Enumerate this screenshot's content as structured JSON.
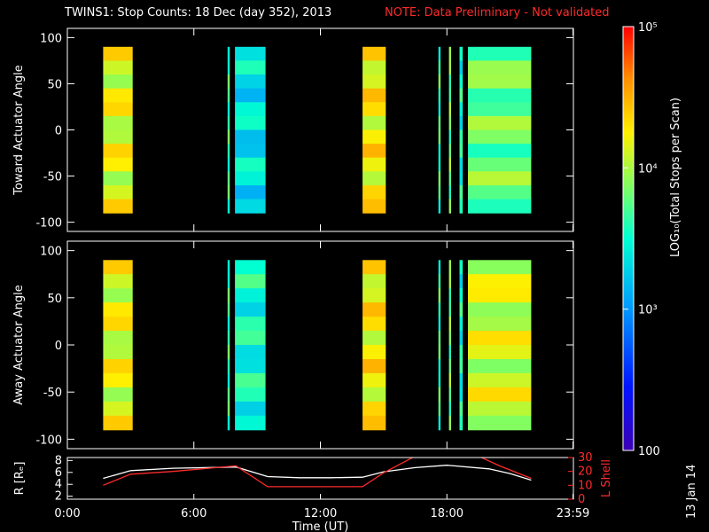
{
  "title": "TWINS1: Stop Counts: 18 Dec (day 352), 2013",
  "note": "NOTE: Data Preliminary - Not validated",
  "date_stamp": "13 Jan 14",
  "colors": {
    "note": "#ff2a2a",
    "r_line": "#ffffff",
    "l_line": "#ff2a2a"
  },
  "colorbar": {
    "label": "LOG₁₀(Total Stops per Scan)",
    "ticks": [
      "10⁵",
      "10⁴",
      "10³",
      "100"
    ]
  },
  "chart_data": [
    {
      "type": "heatmap",
      "name": "toward",
      "ylabel": "Toward Actuator Angle",
      "ylim": [
        -110,
        110
      ],
      "yticks": [
        "100",
        "50",
        "0",
        "-50",
        "-100"
      ],
      "xlim": [
        0,
        24
      ],
      "segments": [
        {
          "start": 1.7,
          "end": 3.1,
          "level": 0.72
        },
        {
          "start": 7.6,
          "end": 7.7,
          "level": 0.55
        },
        {
          "start": 7.95,
          "end": 9.4,
          "level": 0.45
        },
        {
          "start": 14.0,
          "end": 15.1,
          "level": 0.75
        },
        {
          "start": 17.6,
          "end": 17.7,
          "level": 0.55
        },
        {
          "start": 18.1,
          "end": 18.2,
          "level": 0.6
        },
        {
          "start": 18.6,
          "end": 18.75,
          "level": 0.5
        },
        {
          "start": 19.0,
          "end": 22.0,
          "level": 0.6
        }
      ]
    },
    {
      "type": "heatmap",
      "name": "away",
      "ylabel": "Away Actuator Angle",
      "ylim": [
        -110,
        110
      ],
      "yticks": [
        "100",
        "50",
        "0",
        "-50",
        "-100"
      ],
      "xlim": [
        0,
        24
      ],
      "segments": [
        {
          "start": 1.7,
          "end": 3.1,
          "level": 0.72
        },
        {
          "start": 7.6,
          "end": 7.7,
          "level": 0.55
        },
        {
          "start": 7.95,
          "end": 9.4,
          "level": 0.5
        },
        {
          "start": 14.0,
          "end": 15.1,
          "level": 0.75
        },
        {
          "start": 17.6,
          "end": 17.7,
          "level": 0.55
        },
        {
          "start": 18.1,
          "end": 18.2,
          "level": 0.6
        },
        {
          "start": 18.6,
          "end": 18.75,
          "level": 0.5
        },
        {
          "start": 19.0,
          "end": 22.0,
          "level": 0.7
        }
      ]
    },
    {
      "type": "line",
      "name": "orbit",
      "ylabel": "R [Rₑ]",
      "ylabel_right": "L Shell",
      "xlabel": "Time (UT)",
      "xticks": [
        "0:00",
        "6:00",
        "12:00",
        "18:00",
        "23:59"
      ],
      "xtick_values": [
        0,
        6,
        12,
        18,
        23.98
      ],
      "xlim": [
        0,
        24
      ],
      "ylim": [
        1.5,
        8.5
      ],
      "yticks": [
        "8",
        "6",
        "4",
        "2"
      ],
      "y2lim": [
        0,
        30
      ],
      "y2ticks": [
        "30",
        "20",
        "10",
        "0"
      ],
      "series": [
        {
          "axis": "left",
          "x": [
            1.7,
            3.0,
            5.0,
            8.0,
            9.5,
            11.0,
            12.5,
            14.0,
            15.0,
            16.5,
            18.0,
            20.0,
            21.0,
            22.0
          ],
          "y": [
            5.0,
            6.3,
            6.7,
            6.9,
            5.3,
            5.1,
            5.1,
            5.2,
            6.1,
            6.8,
            7.2,
            6.6,
            5.8,
            4.7
          ]
        },
        {
          "axis": "right",
          "x": [
            1.7,
            3.0,
            5.0,
            8.0,
            9.5,
            11.0,
            12.5,
            14.0,
            15.0,
            16.5,
            19.5,
            20.5,
            22.0
          ],
          "y": [
            10,
            18,
            20,
            24,
            9,
            9,
            9,
            9,
            19,
            31,
            31,
            24,
            15
          ]
        }
      ]
    }
  ]
}
